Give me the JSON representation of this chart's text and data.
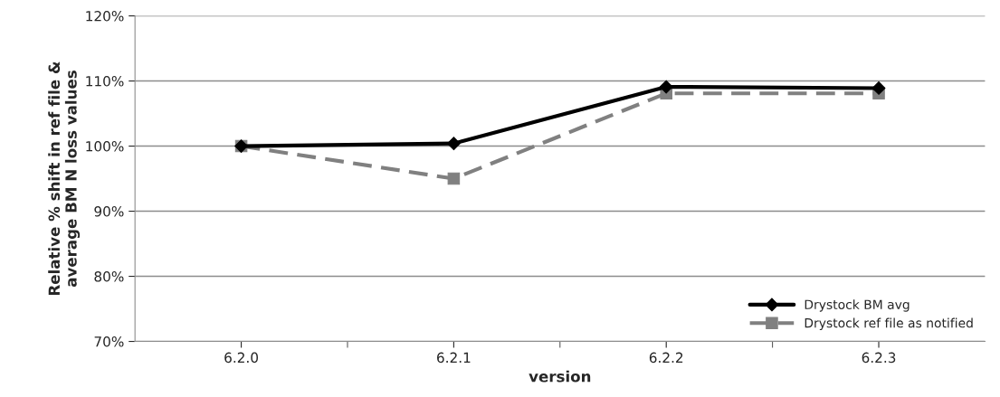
{
  "chart_data": {
    "type": "line",
    "xlabel": "version",
    "ylabel": "Relative % shift in ref file &\naverage BM N loss values",
    "categories": [
      "6.2.0",
      "6.2.1",
      "6.2.2",
      "6.2.3"
    ],
    "series": [
      {
        "name": "Drystock BM avg",
        "color": "#000000",
        "values": [
          100,
          100.4,
          109.1,
          108.9
        ],
        "marker": "diamond",
        "line_style": "solid"
      },
      {
        "name": "Drystock ref file as notified",
        "color": "#808080",
        "values": [
          100,
          95,
          108.1,
          108.1
        ],
        "marker": "square",
        "line_style": "dashed"
      }
    ],
    "ylim": [
      70,
      120
    ],
    "yticks": [
      {
        "value": 70,
        "label": "70%"
      },
      {
        "value": 80,
        "label": "80%"
      },
      {
        "value": 90,
        "label": "90%"
      },
      {
        "value": 100,
        "label": "100%"
      },
      {
        "value": 110,
        "label": "110%"
      },
      {
        "value": 120,
        "label": "120%"
      }
    ],
    "grid": "y",
    "legend": "bottom right"
  }
}
